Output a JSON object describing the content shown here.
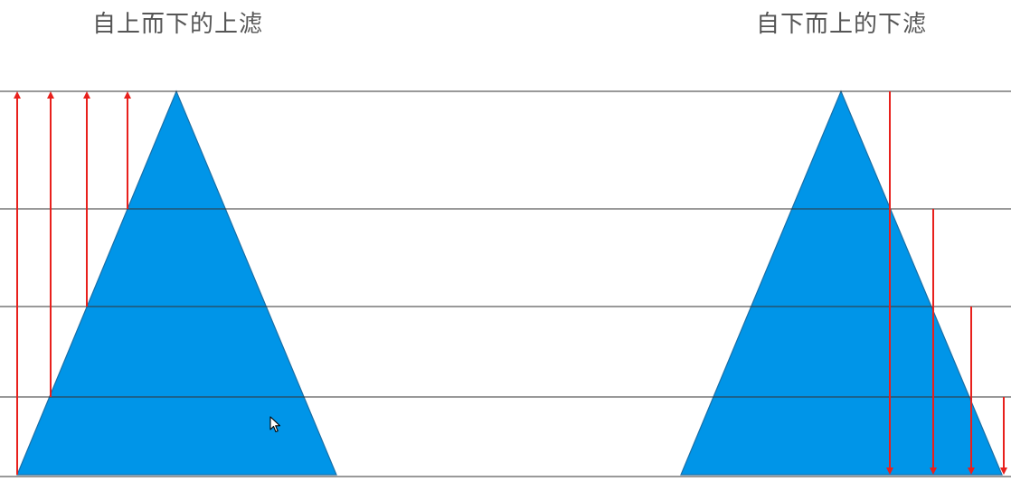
{
  "titles": {
    "left": "自上而下的上滤",
    "right": "自下而上的下滤"
  },
  "colors": {
    "triangle_fill": "#0095e8",
    "triangle_stroke": "#1a6fa6",
    "arrow": "#e8201c",
    "level_line": "#333333",
    "title_text": "#555555"
  },
  "levels": 4,
  "left_panel": {
    "direction": "up",
    "arrows_to_top_from_levels": [
      4,
      3,
      2,
      1
    ]
  },
  "right_panel": {
    "direction": "down",
    "arrows_to_bottom_from_levels": [
      0,
      1,
      2,
      3
    ]
  },
  "cursor_icon": "arrow-pointer"
}
